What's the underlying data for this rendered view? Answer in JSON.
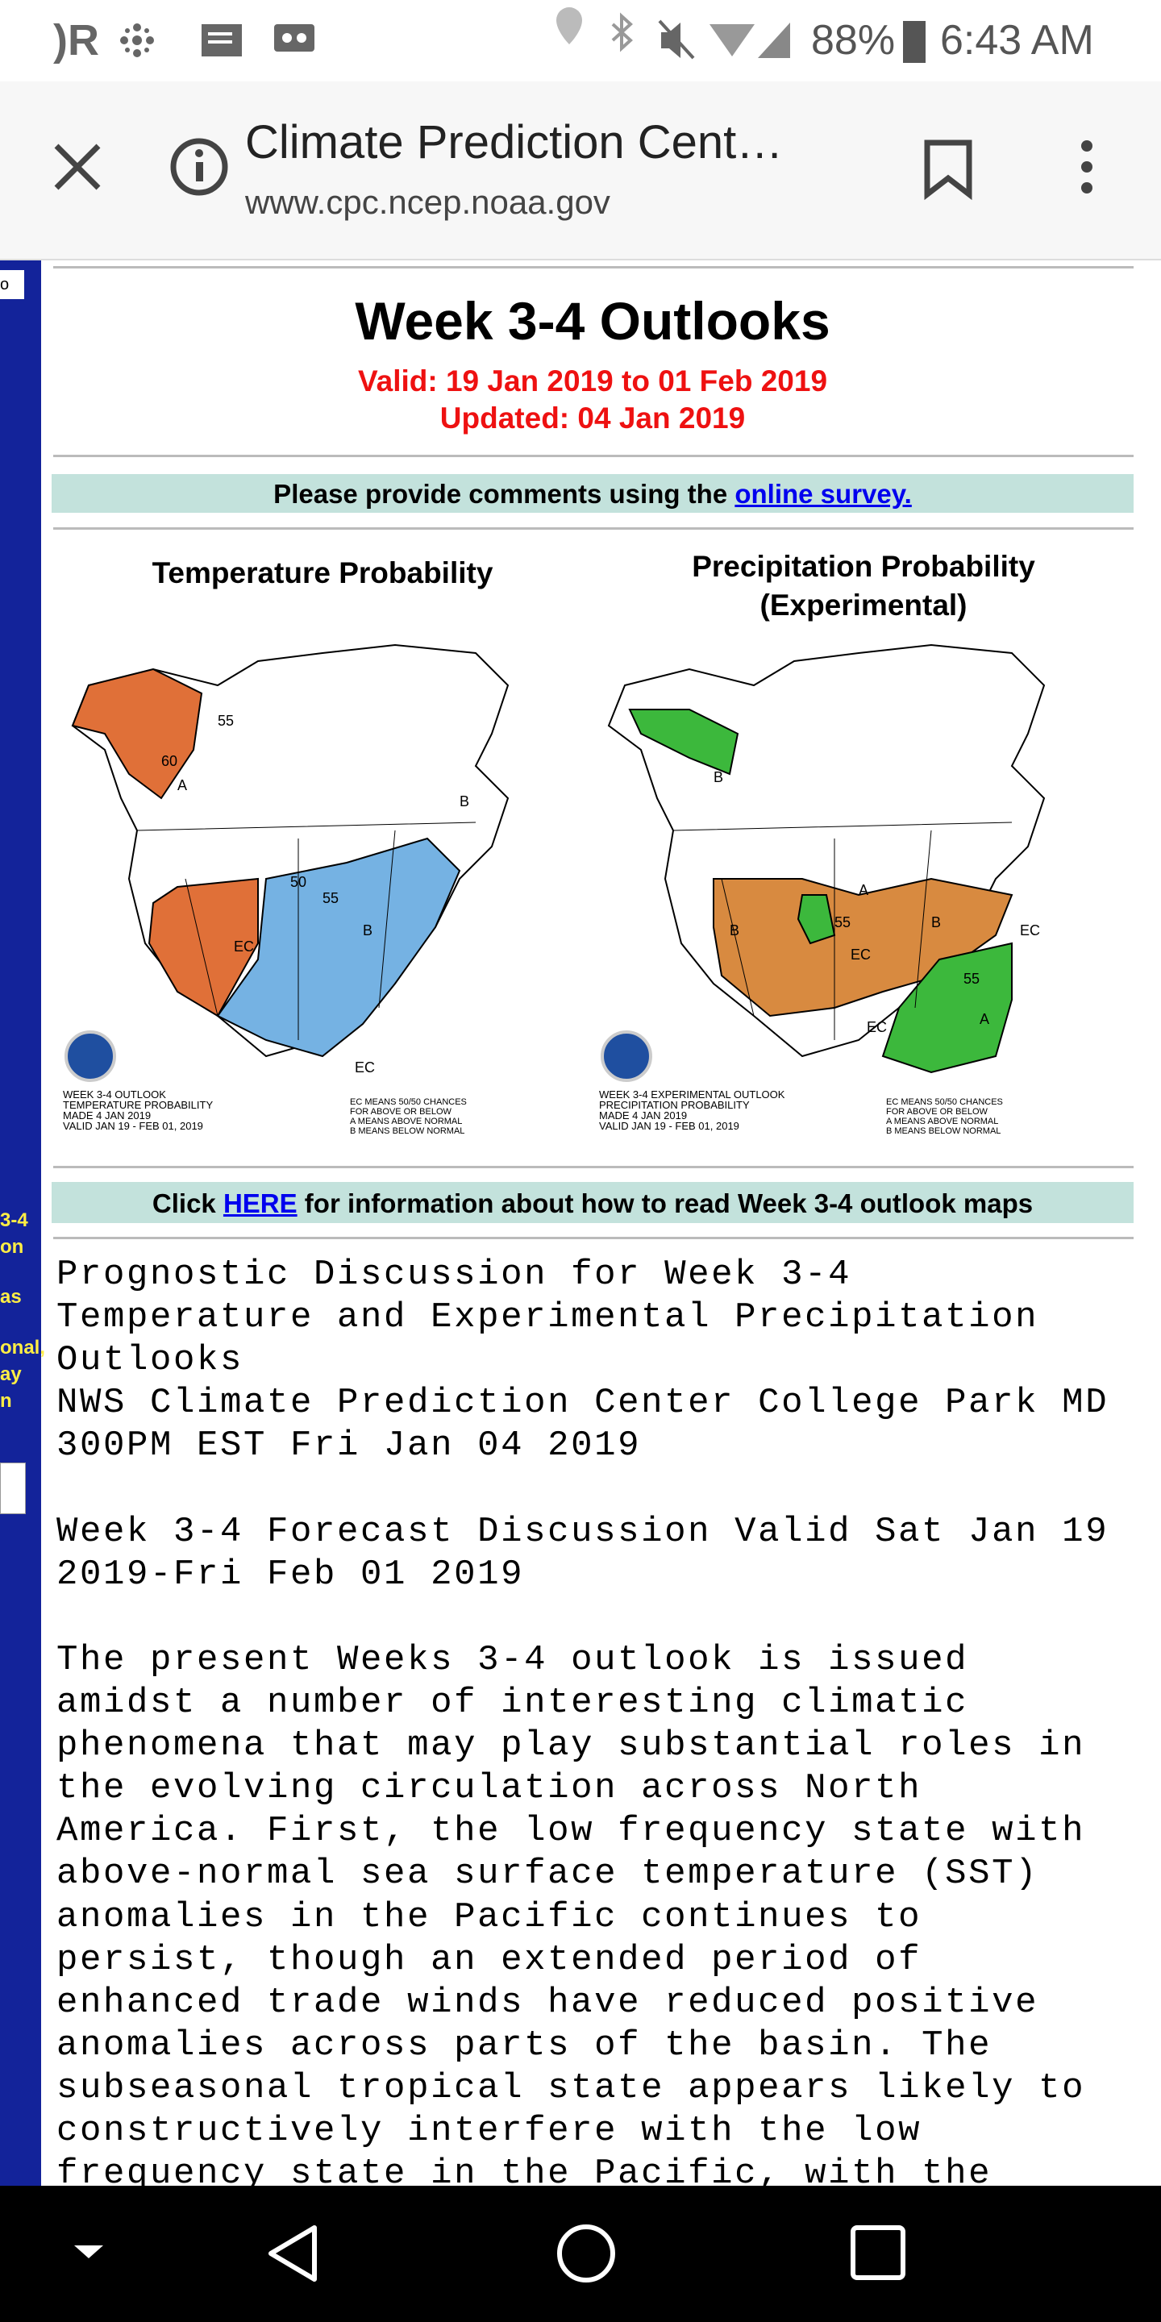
{
  "status_bar": {
    "battery": "88%",
    "time": "6:43 AM"
  },
  "toolbar": {
    "title": "Climate Prediction Cent…",
    "url": "www.cpc.ncep.noaa.gov"
  },
  "sidebar": {
    "fragments": [
      "o",
      "3-4",
      "on",
      "as",
      "onal,",
      "ay",
      "n"
    ]
  },
  "page": {
    "heading": "Week 3-4 Outlooks",
    "valid": "Valid: 19 Jan 2019 to 01 Feb 2019",
    "updated": "Updated: 04 Jan 2019",
    "survey": {
      "text": "Please provide comments using the ",
      "link": "online survey."
    },
    "maps": [
      {
        "title": "Temperature Probability",
        "legend_left": [
          "WEEK 3-4 OUTLOOK",
          "TEMPERATURE PROBABILITY",
          "MADE  4 JAN 2019",
          "VALID  JAN 19 - FEB 01, 2019"
        ],
        "legend_right": [
          "EC MEANS 50/50 CHANCES",
          "FOR ABOVE OR BELOW",
          "A MEANS ABOVE NORMAL",
          "B MEANS BELOW NORMAL"
        ],
        "labels": [
          "A",
          "B",
          "EC",
          "B",
          "EC",
          "55",
          "60",
          "55",
          "50"
        ]
      },
      {
        "title": "Precipitation Probability",
        "subtitle": "(Experimental)",
        "legend_left": [
          "WEEK 3-4 EXPERIMENTAL OUTLOOK",
          "PRECIPITATION PROBABILITY",
          "MADE  4 JAN 2019",
          "VALID  JAN 19 - FEB 01, 2019"
        ],
        "legend_right": [
          "EC MEANS 50/50 CHANCES",
          "FOR ABOVE OR BELOW",
          "A MEANS ABOVE NORMAL",
          "B MEANS BELOW NORMAL"
        ],
        "labels": [
          "B",
          "A",
          "B",
          "EC",
          "B",
          "A",
          "EC",
          "55",
          "55",
          "EC"
        ]
      }
    ],
    "help": {
      "before": "Click ",
      "link": "HERE",
      "after": " for information about how to read Week 3-4 outlook maps"
    },
    "discussion": [
      [
        "Prognostic Discussion for Week 3-4",
        "Temperature and Experimental Precipitation",
        "Outlooks",
        "NWS Climate Prediction Center College Park MD",
        "300PM EST Fri Jan 04 2019"
      ],
      [
        "Week 3-4 Forecast Discussion Valid Sat Jan 19",
        "2019-Fri Feb 01 2019"
      ],
      [
        "The present Weeks 3-4 outlook is issued",
        "amidst a number of interesting climatic",
        "phenomena that may play substantial roles in",
        "the evolving circulation across North",
        "America. First, the low frequency state with",
        "above-normal sea surface temperature (SST)",
        "anomalies in the Pacific continues to",
        "persist, though an extended period of",
        "enhanced trade winds have reduced positive",
        "anomalies across parts of the basin. The",
        "subseasonal tropical state appears likely to",
        "constructively interfere with the low",
        "frequency state in the Pacific, with the"
      ]
    ]
  }
}
